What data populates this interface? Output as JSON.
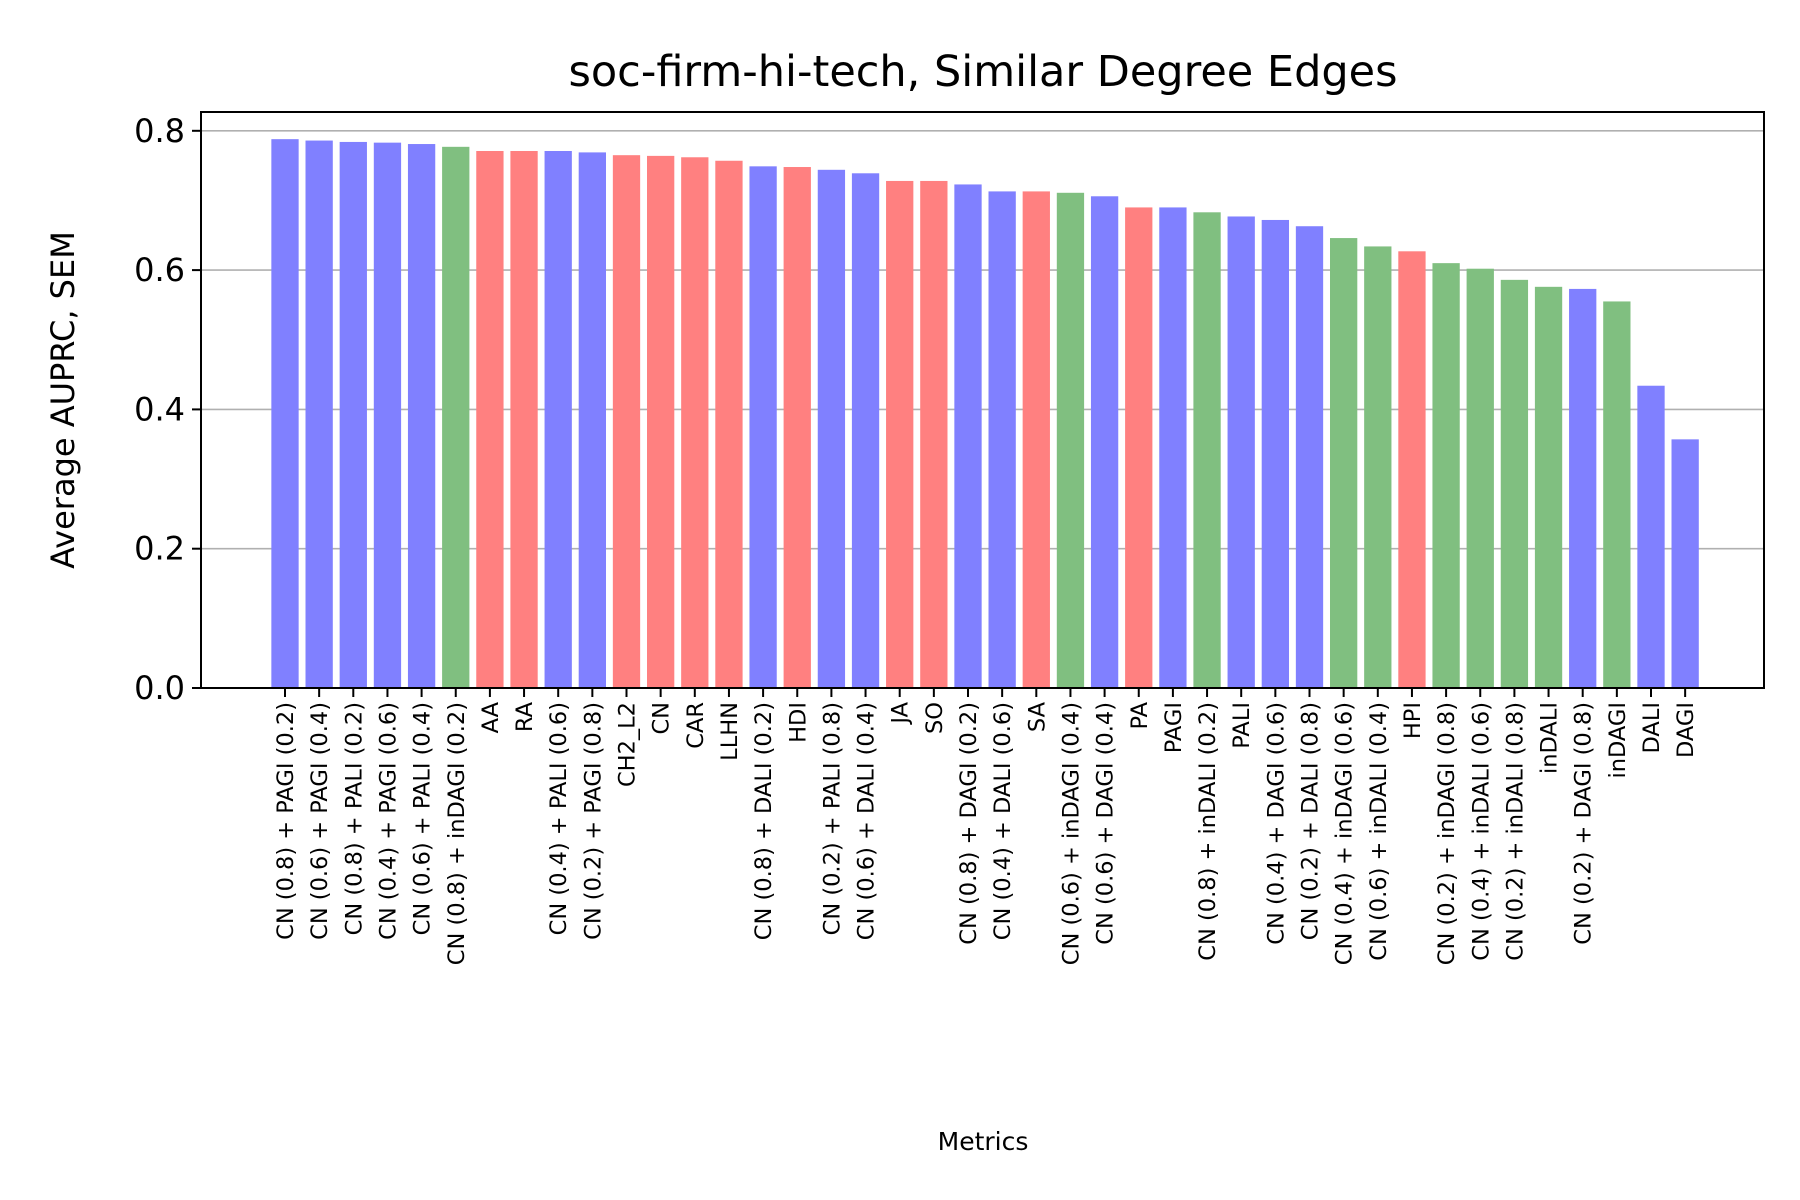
{
  "chart_data": {
    "type": "bar",
    "title": "soc-firm-hi-tech, Similar Degree Edges",
    "xlabel": "Metrics",
    "ylabel": "Average AUPRC, SEM",
    "ylim": [
      0,
      0.827
    ],
    "yticks": [
      "0.0",
      "0.2",
      "0.4",
      "0.6",
      "0.8"
    ],
    "grid": "horizontal",
    "colors": {
      "blue": "#8080ff",
      "red": "#ff8080",
      "green": "#80bf80"
    },
    "categories": [
      "CN (0.8) + PAGI (0.2)",
      "CN (0.6) + PAGI (0.4)",
      "CN (0.8) + PALI (0.2)",
      "CN (0.4) + PAGI (0.6)",
      "CN (0.6) + PALI (0.4)",
      "CN (0.8) + inDAGI (0.2)",
      "AA",
      "RA",
      "CN (0.4) + PALI (0.6)",
      "CN (0.2) + PAGI (0.8)",
      "CH2_L2",
      "CN",
      "CAR",
      "LLHN",
      "CN (0.8) + DALI (0.2)",
      "HDI",
      "CN (0.2) + PALI (0.8)",
      "CN (0.6) + DALI (0.4)",
      "JA",
      "SO",
      "CN (0.8) + DAGI (0.2)",
      "CN (0.4) + DALI (0.6)",
      "SA",
      "CN (0.6) + inDAGI (0.4)",
      "CN (0.6) + DAGI (0.4)",
      "PA",
      "PAGI",
      "CN (0.8) + inDALI (0.2)",
      "PALI",
      "CN (0.4) + DAGI (0.6)",
      "CN (0.2) + DALI (0.8)",
      "CN (0.4) + inDAGI (0.6)",
      "CN (0.6) + inDALI (0.4)",
      "HPI",
      "CN (0.2) + inDAGI (0.8)",
      "CN (0.4) + inDALI (0.6)",
      "CN (0.2) + inDALI (0.8)",
      "inDALI",
      "CN (0.2) + DAGI (0.8)",
      "inDAGI",
      "DALI",
      "DAGI"
    ],
    "values": [
      0.788,
      0.786,
      0.784,
      0.783,
      0.781,
      0.777,
      0.771,
      0.771,
      0.771,
      0.769,
      0.765,
      0.764,
      0.762,
      0.757,
      0.749,
      0.748,
      0.744,
      0.739,
      0.728,
      0.728,
      0.723,
      0.713,
      0.713,
      0.711,
      0.706,
      0.69,
      0.69,
      0.683,
      0.677,
      0.672,
      0.663,
      0.646,
      0.634,
      0.627,
      0.61,
      0.602,
      0.586,
      0.576,
      0.573,
      0.555,
      0.434,
      0.357
    ],
    "bar_colors": [
      "blue",
      "blue",
      "blue",
      "blue",
      "blue",
      "green",
      "red",
      "red",
      "blue",
      "blue",
      "red",
      "red",
      "red",
      "red",
      "blue",
      "red",
      "blue",
      "blue",
      "red",
      "red",
      "blue",
      "blue",
      "red",
      "green",
      "blue",
      "red",
      "blue",
      "green",
      "blue",
      "blue",
      "blue",
      "green",
      "green",
      "red",
      "green",
      "green",
      "green",
      "green",
      "blue",
      "green",
      "blue",
      "blue"
    ]
  }
}
